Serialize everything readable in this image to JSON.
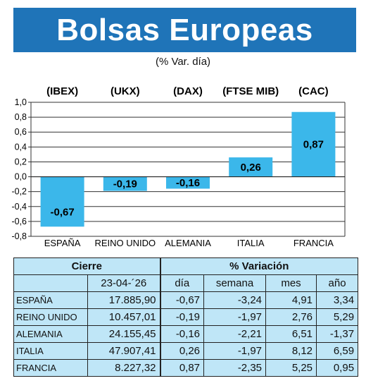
{
  "header": {
    "title": "Bolsas Europeas",
    "subtitle": "(% Var. día)"
  },
  "colors": {
    "banner": "#1f74b8",
    "bar": "#3bb7ea",
    "table_bg": "#bfe6f7"
  },
  "chart_data": {
    "type": "bar",
    "indices": [
      "(IBEX)",
      "(UKX)",
      "(DAX)",
      "(FTSE MIB)",
      "(CAC)"
    ],
    "categories": [
      "ESPAÑA",
      "REINO UNIDO",
      "ALEMANIA",
      "ITALIA",
      "FRANCIA"
    ],
    "values": [
      -0.67,
      -0.19,
      -0.16,
      0.26,
      0.87
    ],
    "value_labels": [
      "-0,67",
      "-0,19",
      "-0,16",
      "0,26",
      "0,87"
    ],
    "ylim": [
      -0.8,
      1.0
    ],
    "yticks": [
      1.0,
      0.8,
      0.6,
      0.4,
      0.2,
      0.0,
      -0.2,
      -0.4,
      -0.6,
      -0.8
    ],
    "ytick_labels": [
      "1,0",
      "0,8",
      "0,6",
      "0,4",
      "0,2",
      "0,0",
      "-0,2",
      "-0,4",
      "-0,6",
      "-0,8"
    ],
    "grid": true
  },
  "table": {
    "group_headers": [
      "Cierre",
      "% Variación"
    ],
    "date": "23-04-´26",
    "columns": [
      "día",
      "semana",
      "mes",
      "año"
    ],
    "rows": [
      {
        "country": "ESPAÑA",
        "close": "17.885,90",
        "dia": "-0,67",
        "semana": "-3,24",
        "mes": "4,91",
        "anio": "3,34"
      },
      {
        "country": "REINO UNIDO",
        "close": "10.457,01",
        "dia": "-0,19",
        "semana": "-1,97",
        "mes": "2,76",
        "anio": "5,29"
      },
      {
        "country": "ALEMANIA",
        "close": "24.155,45",
        "dia": "-0,16",
        "semana": "-2,21",
        "mes": "6,51",
        "anio": "-1,37"
      },
      {
        "country": "ITALIA",
        "close": "47.907,41",
        "dia": "0,26",
        "semana": "-1,97",
        "mes": "8,12",
        "anio": "6,59"
      },
      {
        "country": "FRANCIA",
        "close": "8.227,32",
        "dia": "0,87",
        "semana": "-2,35",
        "mes": "5,25",
        "anio": "0,95"
      }
    ]
  }
}
